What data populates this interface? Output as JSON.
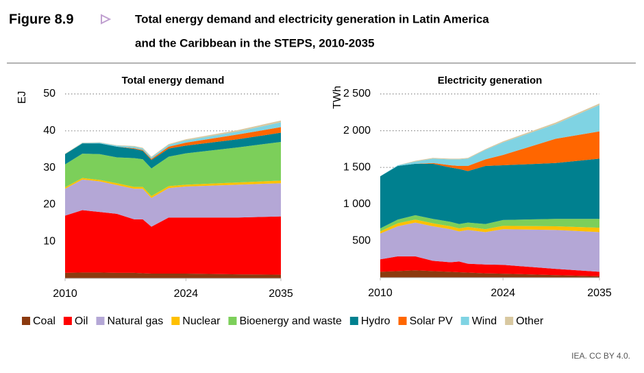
{
  "header": {
    "figure": "Figure 8.9",
    "title_lines": [
      "Total energy demand and electricity generation in Latin America",
      "and the Caribbean in the STEPS, 2010-2035"
    ]
  },
  "chart_data": [
    {
      "type": "area",
      "title": "Total energy demand",
      "y_label": "EJ",
      "x": [
        2010,
        2012,
        2014,
        2016,
        2018,
        2019,
        2020,
        2022,
        2024,
        2030,
        2035
      ],
      "xlim": [
        2010,
        2035
      ],
      "xticks": [
        2010,
        2024,
        2035
      ],
      "ylim": [
        0,
        50
      ],
      "yticks": [
        10,
        20,
        30,
        40,
        50
      ],
      "grid": true,
      "series": [
        {
          "name": "Coal",
          "color": "#8b3a0f",
          "values": [
            1.5,
            1.6,
            1.6,
            1.5,
            1.5,
            1.4,
            1.3,
            1.3,
            1.3,
            1.1,
            1.0
          ]
        },
        {
          "name": "Oil",
          "color": "#ff0000",
          "values": [
            15.5,
            16.9,
            16.4,
            16.0,
            14.5,
            14.6,
            12.7,
            15.2,
            15.2,
            15.4,
            15.8
          ]
        },
        {
          "name": "Natural gas",
          "color": "#b4a7d6",
          "values": [
            7.3,
            8.3,
            8.3,
            7.8,
            8.3,
            8.3,
            7.8,
            8.0,
            8.4,
            8.9,
            9.0
          ]
        },
        {
          "name": "Nuclear",
          "color": "#ffc000",
          "values": [
            0.4,
            0.4,
            0.4,
            0.5,
            0.5,
            0.5,
            0.5,
            0.5,
            0.5,
            0.6,
            0.7
          ]
        },
        {
          "name": "Bioenergy and waste",
          "color": "#7ccf5a",
          "values": [
            6.2,
            6.6,
            7.0,
            7.0,
            7.8,
            7.5,
            7.5,
            8.0,
            8.5,
            9.5,
            10.5
          ]
        },
        {
          "name": "Hydro",
          "color": "#00808f",
          "values": [
            2.8,
            2.8,
            2.9,
            2.9,
            2.5,
            2.3,
            2.3,
            2.2,
            2.1,
            2.2,
            2.5
          ]
        },
        {
          "name": "Solar PV",
          "color": "#ff6600",
          "values": [
            0,
            0,
            0,
            0,
            0.2,
            0.2,
            0.3,
            0.5,
            0.8,
            1.3,
            1.5
          ]
        },
        {
          "name": "Wind",
          "color": "#7fd3e3",
          "values": [
            0,
            0.1,
            0.2,
            0.3,
            0.4,
            0.4,
            0.4,
            0.5,
            0.6,
            0.8,
            1.3
          ]
        },
        {
          "name": "Other",
          "color": "#d8c8a0",
          "values": [
            0.1,
            0.1,
            0.1,
            0.1,
            0.2,
            0.2,
            0.2,
            0.2,
            0.3,
            0.4,
            0.5
          ]
        }
      ]
    },
    {
      "type": "area",
      "title": "Electricity generation",
      "y_label": "TWh",
      "x": [
        2010,
        2012,
        2014,
        2016,
        2018,
        2019,
        2020,
        2022,
        2024,
        2030,
        2035
      ],
      "xlim": [
        2010,
        2035
      ],
      "xticks": [
        2010,
        2024,
        2035
      ],
      "ylim": [
        0,
        2500
      ],
      "yticks": [
        500,
        {
          "value": 1000,
          "label": "1 000"
        },
        {
          "value": 1500,
          "label": "1 500"
        },
        {
          "value": 2000,
          "label": "2 000"
        },
        {
          "value": 2500,
          "label": "2 500"
        }
      ],
      "grid": true,
      "series": [
        {
          "color": "#8b3a0f",
          "values": [
            80,
            90,
            100,
            90,
            80,
            75,
            70,
            60,
            55,
            35,
            20
          ]
        },
        {
          "color": "#ff0000",
          "values": [
            170,
            200,
            190,
            140,
            130,
            145,
            120,
            120,
            120,
            85,
            60
          ]
        },
        {
          "color": "#b4a7d6",
          "values": [
            350,
            410,
            460,
            470,
            450,
            410,
            460,
            440,
            485,
            530,
            540
          ]
        },
        {
          "color": "#ffc000",
          "values": [
            30,
            40,
            40,
            40,
            40,
            40,
            40,
            40,
            45,
            50,
            60
          ]
        },
        {
          "color": "#7ccf5a",
          "values": [
            40,
            50,
            60,
            60,
            60,
            60,
            60,
            70,
            80,
            100,
            120
          ]
        },
        {
          "color": "#00808f",
          "values": [
            710,
            730,
            700,
            750,
            740,
            750,
            700,
            790,
            745,
            760,
            820
          ]
        },
        {
          "color": "#ff6600",
          "values": [
            0,
            0,
            0,
            10,
            30,
            40,
            70,
            90,
            140,
            330,
            370
          ]
        },
        {
          "color": "#7fd3e3",
          "values": [
            0,
            10,
            30,
            60,
            80,
            90,
            100,
            130,
            170,
            200,
            360
          ]
        },
        {
          "color": "#d8c8a0",
          "values": [
            0,
            0,
            10,
            10,
            10,
            10,
            10,
            10,
            15,
            20,
            20
          ]
        }
      ]
    }
  ],
  "footer": "IEA. CC BY 4.0."
}
